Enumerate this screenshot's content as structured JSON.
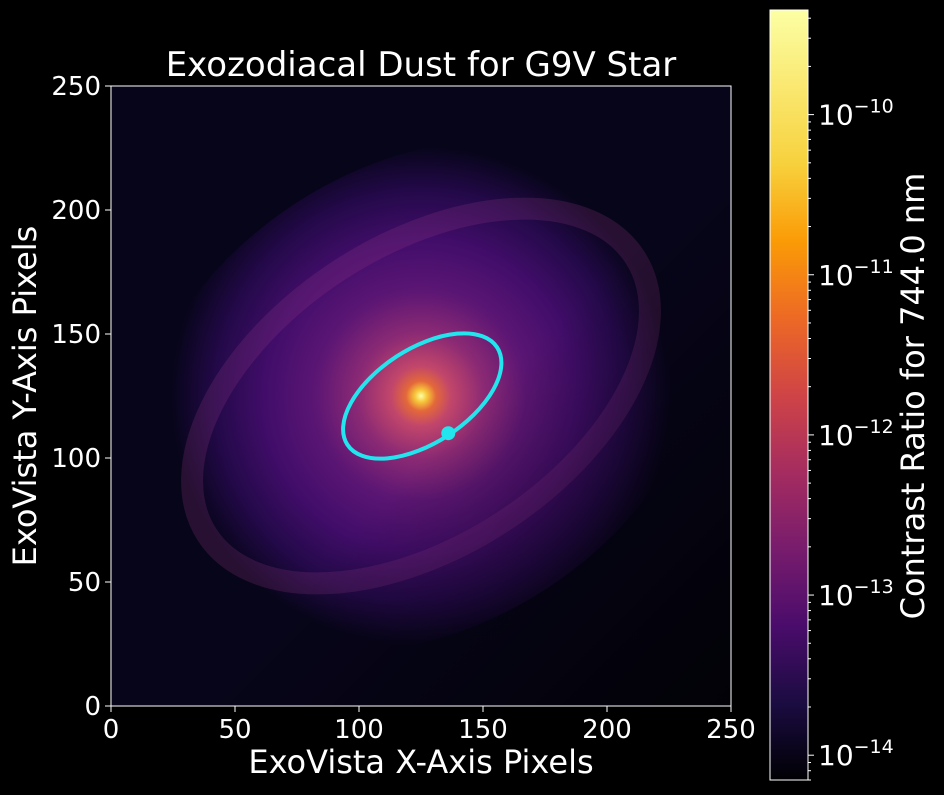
{
  "chart_data": {
    "type": "heatmap",
    "title": "Exozodiacal Dust for G9V Star",
    "xlabel": "ExoVista X-Axis Pixels",
    "ylabel": "ExoVista Y-Axis Pixels",
    "xlim": [
      0,
      250
    ],
    "ylim": [
      0,
      250
    ],
    "x_ticks": [
      "0",
      "50",
      "100",
      "150",
      "200",
      "250"
    ],
    "y_ticks": [
      "0",
      "50",
      "100",
      "150",
      "200",
      "250"
    ],
    "star_center": [
      125,
      125
    ],
    "colormap": "inferno",
    "colorbar": {
      "label": "Contrast Ratio for 744.0 nm",
      "scale": "log",
      "range": [
        7e-15,
        4.5e-10
      ],
      "ticks": [
        {
          "value": 1e-10,
          "base": "10",
          "exp": "−10"
        },
        {
          "value": 1e-11,
          "base": "10",
          "exp": "−11"
        },
        {
          "value": 1e-12,
          "base": "10",
          "exp": "−12"
        },
        {
          "value": 1e-13,
          "base": "10",
          "exp": "−13"
        },
        {
          "value": 1e-14,
          "base": "10",
          "exp": "−14"
        }
      ]
    },
    "orbit": {
      "color": "#22e5ee",
      "center": [
        125.5,
        125
      ],
      "semi_major": 36,
      "semi_minor": 19,
      "angle_deg": 33,
      "planet": [
        136,
        110
      ]
    }
  }
}
